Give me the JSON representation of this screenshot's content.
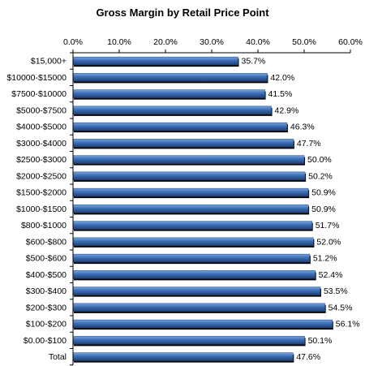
{
  "chart_data": {
    "type": "bar",
    "orientation": "horizontal",
    "title": "Gross Margin by Retail Price Point",
    "xlabel": "",
    "ylabel": "",
    "xlim": [
      0,
      60
    ],
    "x_ticks": [
      "0.0%",
      "10.0%",
      "20.0%",
      "30.0%",
      "40.0%",
      "50.0%",
      "60.0%"
    ],
    "x_axis_position": "top",
    "grid": false,
    "legend": "none",
    "categories": [
      "$15,000+",
      "$10000-$15000",
      "$7500-$10000",
      "$5000-$7500",
      "$4000-$5000",
      "$3000-$4000",
      "$2500-$3000",
      "$2000-$2500",
      "$1500-$2000",
      "$1000-$1500",
      "$800-$1000",
      "$600-$800",
      "$500-$600",
      "$400-$500",
      "$300-$400",
      "$200-$300",
      "$100-$200",
      "$0.00-$100",
      "Total"
    ],
    "values": [
      35.7,
      42.0,
      41.5,
      42.9,
      46.3,
      47.7,
      50.0,
      50.2,
      50.9,
      50.9,
      51.7,
      52.0,
      51.2,
      52.4,
      53.5,
      54.5,
      56.1,
      50.1,
      47.6
    ],
    "data_labels": [
      "35.7%",
      "42.0%",
      "41.5%",
      "42.9%",
      "46.3%",
      "47.7%",
      "50.0%",
      "50.2%",
      "50.9%",
      "50.9%",
      "51.7%",
      "52.0%",
      "51.2%",
      "52.4%",
      "53.5%",
      "54.5%",
      "56.1%",
      "50.1%",
      "47.6%"
    ],
    "bar_color": "#3a6db5",
    "bar_color_dark": "#1f3f75",
    "bar_color_light": "#7aa3dc"
  }
}
